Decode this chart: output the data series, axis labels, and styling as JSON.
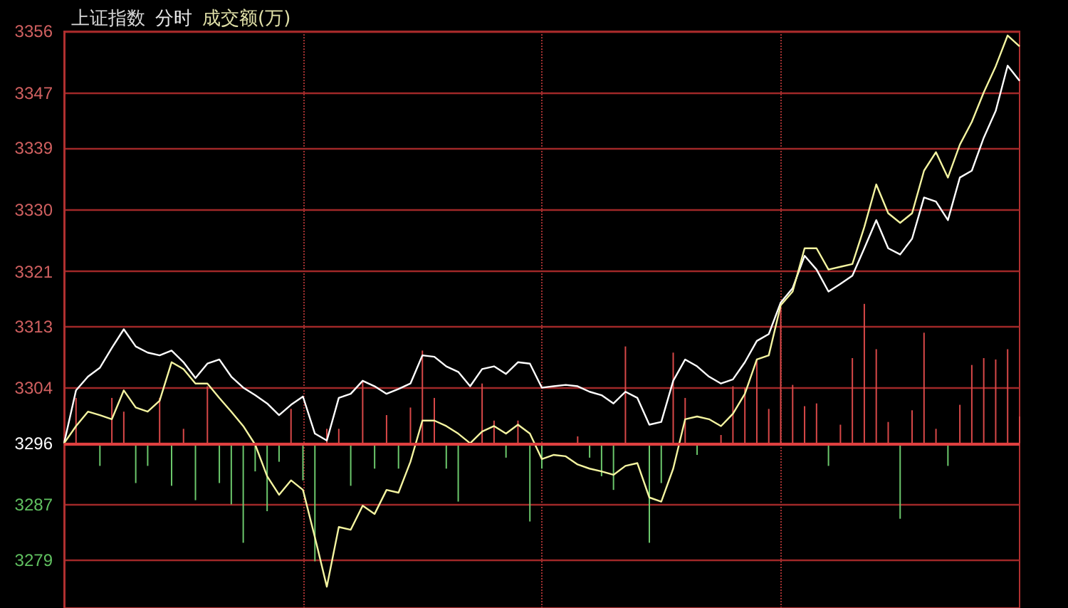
{
  "chart_data": {
    "type": "line",
    "title": "上证指数",
    "subtitle": "分时",
    "annotations": [
      "成交额(万)"
    ],
    "categories": [
      null,
      null,
      null,
      null,
      null,
      null,
      null,
      null,
      null,
      null,
      null,
      null,
      null,
      null,
      null,
      null,
      null,
      null,
      null,
      null,
      null,
      null,
      null,
      null,
      null,
      null,
      null,
      null,
      null,
      null,
      null,
      null,
      null,
      null,
      null,
      null,
      null,
      null,
      null,
      null,
      null,
      null,
      null,
      null,
      null,
      null,
      null,
      null,
      null,
      null,
      null,
      null,
      null,
      null,
      null,
      null,
      null,
      null,
      null,
      null,
      null,
      null,
      null,
      null,
      null,
      null,
      null,
      null,
      null,
      null,
      null,
      null,
      null,
      null,
      null,
      null,
      null,
      null,
      null,
      null,
      null
    ],
    "series": [
      {
        "type": "bar",
        "base": [
          null,
          3296,
          null,
          3296,
          3296,
          3296,
          3296,
          3296,
          3296,
          3296,
          3296,
          3296,
          3296,
          3296,
          3296,
          3296,
          3296,
          3296,
          3296,
          3296,
          3296,
          3296,
          3296,
          3296,
          3296,
          3296,
          3296,
          3296,
          3296,
          3296,
          3296,
          3296,
          3296,
          3296,
          null,
          3296,
          3296,
          3296,
          3296,
          3296,
          3296,
          null,
          null,
          3296,
          3296,
          3296,
          3296,
          3296,
          null,
          3296,
          3296,
          3296,
          3296,
          3296,
          null,
          3296,
          3296,
          3296,
          3296,
          3296,
          3296,
          3296,
          3296,
          3296,
          3296,
          3296,
          3296,
          3296,
          3296,
          3296,
          3296,
          3296,
          3296,
          3296,
          3296,
          3296,
          3296,
          3296,
          3296,
          3296,
          3296
        ],
        "values": [
          null,
          6.6,
          null,
          -3.3,
          6.6,
          4.6,
          -5.8,
          -3.3,
          6.6,
          -6.2,
          2.1,
          -8.3,
          8.3,
          -5.8,
          -8.9,
          -14.5,
          -4.1,
          -9.9,
          -2.7,
          5,
          -5.4,
          -17.2,
          2.1,
          2.1,
          -6.2,
          9.1,
          -3.7,
          4.1,
          -3.7,
          5.2,
          13.5,
          6.6,
          -3.7,
          -8.5,
          null,
          8.7,
          3.3,
          -2.1,
          3.3,
          -11.4,
          -3.7,
          null,
          null,
          1,
          -2.1,
          -4.8,
          -6.8,
          14.1,
          null,
          -14.5,
          -5.8,
          13.2,
          6.6,
          -1.7,
          null,
          1.2,
          8.3,
          8.1,
          12.2,
          5,
          19.9,
          8.5,
          5.4,
          5.8,
          -3.3,
          2.7,
          12.4,
          20.3,
          13.7,
          3.1,
          -11,
          4.8,
          16.1,
          2.1,
          -3.3,
          5.6,
          11.4,
          12.4,
          12.2,
          13.7,
          3.9
        ],
        "colors": [
          null,
          "#d84848",
          null,
          "#6cc86c",
          "#d84848",
          "#d84848",
          "#6cc86c",
          "#6cc86c",
          "#d84848",
          "#6cc86c",
          "#d84848",
          "#6cc86c",
          "#d84848",
          "#6cc86c",
          "#6cc86c",
          "#6cc86c",
          "#6cc86c",
          "#6cc86c",
          "#6cc86c",
          "#d84848",
          "#6cc86c",
          "#6cc86c",
          "#d84848",
          "#d84848",
          "#6cc86c",
          "#d84848",
          "#6cc86c",
          "#d84848",
          "#6cc86c",
          "#d84848",
          "#d84848",
          "#d84848",
          "#6cc86c",
          "#6cc86c",
          null,
          "#d84848",
          "#d84848",
          "#6cc86c",
          "#d84848",
          "#6cc86c",
          "#6cc86c",
          null,
          null,
          "#d84848",
          "#6cc86c",
          "#6cc86c",
          "#6cc86c",
          "#d84848",
          null,
          "#6cc86c",
          "#6cc86c",
          "#d84848",
          "#d84848",
          "#6cc86c",
          null,
          "#d84848",
          "#d84848",
          "#d84848",
          "#d84848",
          "#d84848",
          "#d84848",
          "#d84848",
          "#d84848",
          "#d84848",
          "#6cc86c",
          "#d84848",
          "#d84848",
          "#d84848",
          "#d84848",
          "#d84848",
          "#6cc86c",
          "#d84848",
          "#d84848",
          "#d84848",
          "#6cc86c",
          "#d84848",
          "#d84848",
          "#d84848",
          "#d84848",
          "#d84848",
          "#d84848"
        ]
      },
      {
        "color": "#ffffff",
        "values": [
          3296,
          3303.7,
          3305.7,
          3307,
          3309.9,
          3312.6,
          3310.1,
          3309.2,
          3308.8,
          3309.5,
          3307.8,
          3305.5,
          3307.6,
          3308.2,
          3305.7,
          3304.1,
          3303,
          3301.8,
          3300.1,
          3301.6,
          3302.8,
          3297.4,
          3296.4,
          3302.6,
          3303.2,
          3305.1,
          3304.3,
          3303.2,
          3303.9,
          3304.7,
          3308.8,
          3308.6,
          3307.2,
          3306.4,
          3304.3,
          3306.8,
          3307.2,
          3306.1,
          3307.8,
          3307.6,
          3304.1,
          3304.3,
          3304.5,
          3304.3,
          3303.5,
          3303,
          3301.8,
          3303.5,
          3302.6,
          3298.7,
          3299.1,
          3305.1,
          3308.2,
          3307.2,
          3305.7,
          3304.7,
          3305.3,
          3307.8,
          3310.9,
          3311.9,
          3316.5,
          3318.6,
          3323.3,
          3321.3,
          3318.1,
          3319.2,
          3320.4,
          3324.4,
          3328.5,
          3324.4,
          3323.5,
          3325.8,
          3331.8,
          3331.2,
          3328.5,
          3334.7,
          3335.7,
          3340.5,
          3344.4,
          3351,
          3348.8
        ]
      },
      {
        "color": "#f4f4a0",
        "values": [
          3296,
          3298.5,
          3300.6,
          3300.1,
          3299.5,
          3303.7,
          3301.2,
          3300.6,
          3302.2,
          3307.8,
          3306.8,
          3304.7,
          3304.7,
          3302.6,
          3300.6,
          3298.5,
          3295.8,
          3291.2,
          3288.5,
          3290.6,
          3289.2,
          3282.3,
          3275.1,
          3283.8,
          3283.4,
          3286.9,
          3285.7,
          3289.2,
          3288.8,
          3293.3,
          3299.3,
          3299.3,
          3298.5,
          3297.4,
          3296,
          3297.7,
          3298.5,
          3297.4,
          3298.7,
          3297.4,
          3293.7,
          3294.3,
          3294.1,
          3292.9,
          3292.3,
          3291.9,
          3291.4,
          3292.7,
          3293.1,
          3288.1,
          3287.5,
          3292.3,
          3299.5,
          3299.9,
          3299.5,
          3298.5,
          3300.3,
          3303.2,
          3308.2,
          3308.8,
          3316.1,
          3318.1,
          3324.4,
          3324.4,
          3321.3,
          3321.7,
          3322.1,
          3327.5,
          3333.7,
          3329.5,
          3328.1,
          3329.5,
          3335.7,
          3338.4,
          3334.7,
          3339.5,
          3342.8,
          3347.1,
          3350.9,
          3355.4,
          3353.8
        ]
      }
    ],
    "ylim": [
      3272,
      3356
    ],
    "yticks": [
      3279,
      3287,
      3296,
      3304,
      3313,
      3321,
      3330,
      3339,
      3347,
      3356
    ],
    "ref_lines": [
      {
        "axis": "y",
        "value": 3296,
        "color": "#e04040"
      }
    ],
    "grid": true,
    "tick_labels": "y"
  }
}
